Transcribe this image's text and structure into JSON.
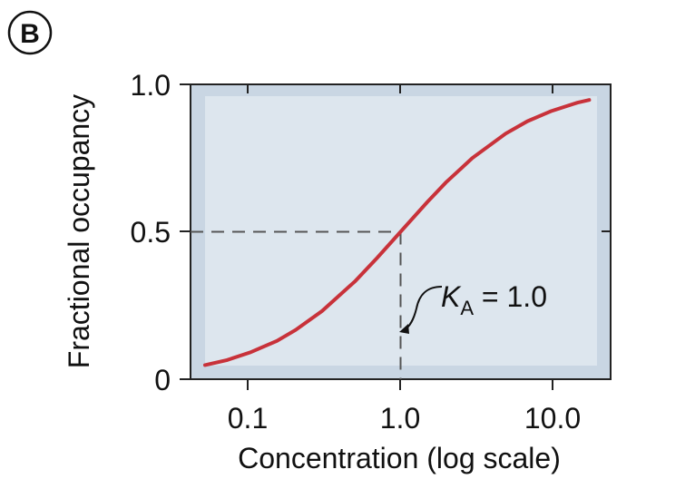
{
  "panel_label": "B",
  "chart_data": {
    "type": "line",
    "xscale": "log",
    "xlabel": "Concentration (log scale)",
    "ylabel": "Fractional occupancy",
    "xlim": [
      0.04,
      25
    ],
    "ylim": [
      0,
      1.0
    ],
    "xticks": [
      0.1,
      1.0,
      10.0
    ],
    "xtick_labels": [
      "0.1",
      "1.0",
      "10.0"
    ],
    "yticks": [
      0,
      0.5,
      1.0
    ],
    "ytick_labels": [
      "0",
      "0.5",
      "1.0"
    ],
    "grid": false,
    "series": [
      {
        "color": "#c8323a",
        "x": [
          0.05,
          0.07,
          0.1,
          0.15,
          0.2,
          0.3,
          0.5,
          0.7,
          1.0,
          1.5,
          2.0,
          3.0,
          5.0,
          7.0,
          10.0,
          15.0,
          18.0
        ],
        "y": [
          0.048,
          0.065,
          0.091,
          0.13,
          0.167,
          0.231,
          0.333,
          0.412,
          0.5,
          0.6,
          0.667,
          0.75,
          0.833,
          0.875,
          0.909,
          0.938,
          0.947
        ]
      }
    ],
    "annotations": [
      {
        "symbol": "K",
        "subscript": "A",
        "text": " = 1.0",
        "x": 1.0,
        "y": 0.5
      }
    ],
    "reference_lines": {
      "x": 1.0,
      "y": 0.5
    },
    "colors": {
      "plot_outer": "#c9d6e3",
      "plot_inner": "#dde6ee",
      "curve": "#c8323a"
    }
  }
}
